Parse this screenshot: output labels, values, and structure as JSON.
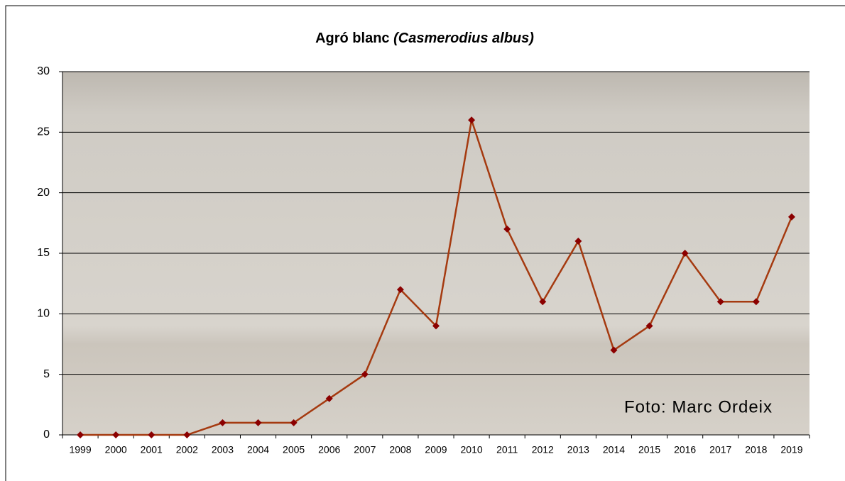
{
  "chart_data": {
    "type": "line",
    "title": "Agró blanc",
    "title_italic": "(Casmerodius albus)",
    "annotation": "Foto: Marc Ordeix",
    "categories": [
      "1999",
      "2000",
      "2001",
      "2002",
      "2003",
      "2004",
      "2005",
      "2006",
      "2007",
      "2008",
      "2009",
      "2010",
      "2011",
      "2012",
      "2013",
      "2014",
      "2015",
      "2016",
      "2017",
      "2018",
      "2019"
    ],
    "values": [
      0,
      0,
      0,
      0,
      1,
      1,
      1,
      3,
      5,
      12,
      9,
      26,
      17,
      11,
      16,
      7,
      9,
      15,
      11,
      11,
      18
    ],
    "color": "#a53a10",
    "marker_color": "#8b0000",
    "ylim": [
      0,
      30
    ],
    "yticks": [
      0,
      5,
      10,
      15,
      20,
      25,
      30
    ],
    "grid": true
  }
}
